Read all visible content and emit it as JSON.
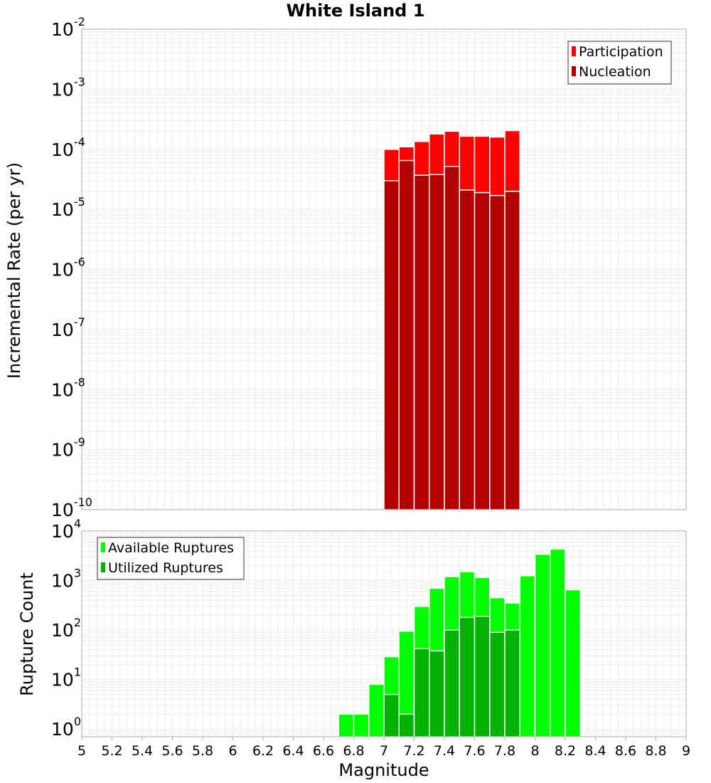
{
  "chart_data": [
    {
      "type": "bar",
      "title": "White Island 1",
      "xlabel": "",
      "ylabel": "Incremental Rate (per yr)",
      "yscale": "log",
      "xlim": [
        5,
        9
      ],
      "ylim": [
        1e-10,
        0.01
      ],
      "grid": true,
      "legend_position": "top-right",
      "bar_width": 0.1,
      "x": [
        7.05,
        7.15,
        7.25,
        7.35,
        7.45,
        7.55,
        7.65,
        7.75,
        7.85
      ],
      "series": [
        {
          "name": "Participation",
          "color": "#ff0000",
          "values": [
            0.0001,
            0.00011,
            0.000135,
            0.00018,
            0.0002,
            0.000165,
            0.000165,
            0.00016,
            0.000205
          ]
        },
        {
          "name": "Nucleation",
          "color": "#b30000",
          "values": [
            3e-05,
            6.5e-05,
            3.7e-05,
            3.8e-05,
            5.2e-05,
            2.1e-05,
            1.9e-05,
            1.7e-05,
            2e-05
          ]
        }
      ]
    },
    {
      "type": "bar",
      "title": "",
      "xlabel": "Magnitude",
      "ylabel": "Rupture Count",
      "yscale": "log",
      "xlim": [
        5,
        9
      ],
      "ylim": [
        0.7,
        10000
      ],
      "grid": true,
      "legend_position": "top-left",
      "bar_width": 0.1,
      "x_ticks": [
        "5",
        "5.2",
        "5.4",
        "5.6",
        "5.8",
        "6",
        "6.2",
        "6.4",
        "6.6",
        "6.8",
        "7",
        "7.2",
        "7.4",
        "7.6",
        "7.8",
        "8",
        "8.2",
        "8.4",
        "8.6",
        "8.8",
        "9"
      ],
      "series": [
        {
          "name": "Available Ruptures",
          "color": "#00ff00",
          "x": [
            6.75,
            6.85,
            6.95,
            7.05,
            7.15,
            7.25,
            7.35,
            7.45,
            7.55,
            7.65,
            7.75,
            7.85,
            7.95,
            8.05,
            8.15,
            8.25
          ],
          "values": [
            2,
            2,
            8,
            29,
            95,
            300,
            700,
            1200,
            1500,
            1150,
            450,
            350,
            1250,
            3400,
            4300,
            650
          ]
        },
        {
          "name": "Utilized Ruptures",
          "color": "#00b300",
          "x": [
            7.05,
            7.15,
            7.25,
            7.35,
            7.45,
            7.55,
            7.65,
            7.75,
            7.85
          ],
          "values": [
            5,
            2,
            42,
            38,
            100,
            180,
            190,
            90,
            100
          ]
        }
      ]
    }
  ],
  "y_ticks_top": [
    {
      "base": "10",
      "exp": "-2"
    },
    {
      "base": "10",
      "exp": "-3"
    },
    {
      "base": "10",
      "exp": "-4"
    },
    {
      "base": "10",
      "exp": "-5"
    },
    {
      "base": "10",
      "exp": "-6"
    },
    {
      "base": "10",
      "exp": "-7"
    },
    {
      "base": "10",
      "exp": "-8"
    },
    {
      "base": "10",
      "exp": "-9"
    },
    {
      "base": "10",
      "exp": "-10"
    }
  ],
  "y_ticks_bottom": [
    {
      "base": "10",
      "exp": "4"
    },
    {
      "base": "10",
      "exp": "3"
    },
    {
      "base": "10",
      "exp": "2"
    },
    {
      "base": "10",
      "exp": "1"
    },
    {
      "base": "10",
      "exp": "0"
    }
  ],
  "colors": {
    "grid": "#ebebeb",
    "frame": "#aaaaaa",
    "bar_outline": "#ffffff"
  }
}
